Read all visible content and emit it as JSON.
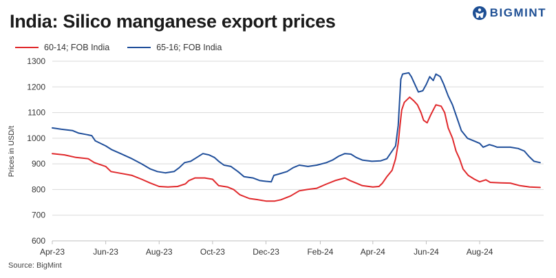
{
  "title": "India: Silico manganese export prices",
  "logo": {
    "text": "BIGMINT",
    "icon": "bigmint-logo-icon"
  },
  "source": "Source: BigMint",
  "colors": {
    "series_red": "#e0282b",
    "series_blue": "#1f4e9a",
    "grid": "#d9d9d9",
    "brand": "#1e4f94"
  },
  "chart_data": {
    "type": "line",
    "title": "India: Silico manganese export prices",
    "xlabel": "",
    "ylabel": "Prices in USD/t",
    "ylim": [
      600,
      1300
    ],
    "yticks": [
      600,
      700,
      800,
      900,
      1000,
      1100,
      1200,
      1300
    ],
    "xlim": [
      "2023-04-01",
      "2024-10-13"
    ],
    "xticks": [
      {
        "date": "2023-04-01",
        "label": "Apr-23"
      },
      {
        "date": "2023-06-01",
        "label": "Jun-23"
      },
      {
        "date": "2023-08-01",
        "label": "Aug-23"
      },
      {
        "date": "2023-10-01",
        "label": "Oct-23"
      },
      {
        "date": "2023-12-01",
        "label": "Dec-23"
      },
      {
        "date": "2024-02-01",
        "label": "Feb-24"
      },
      {
        "date": "2024-04-01",
        "label": "Apr-24"
      },
      {
        "date": "2024-06-01",
        "label": "Jun-24"
      },
      {
        "date": "2024-08-01",
        "label": "Aug-24"
      }
    ],
    "grid": "horizontal",
    "legend_position": "top-left",
    "series": [
      {
        "name": "60-14; FOB India",
        "color": "#e0282b",
        "points": [
          [
            "2023-04-01",
            940
          ],
          [
            "2023-04-15",
            935
          ],
          [
            "2023-04-28",
            925
          ],
          [
            "2023-05-12",
            920
          ],
          [
            "2023-05-19",
            905
          ],
          [
            "2023-06-01",
            890
          ],
          [
            "2023-06-07",
            870
          ],
          [
            "2023-06-20",
            862
          ],
          [
            "2023-07-01",
            855
          ],
          [
            "2023-07-12",
            840
          ],
          [
            "2023-07-22",
            825
          ],
          [
            "2023-08-01",
            812
          ],
          [
            "2023-08-11",
            810
          ],
          [
            "2023-08-22",
            812
          ],
          [
            "2023-08-31",
            822
          ],
          [
            "2023-09-04",
            835
          ],
          [
            "2023-09-11",
            845
          ],
          [
            "2023-09-22",
            845
          ],
          [
            "2023-10-01",
            840
          ],
          [
            "2023-10-08",
            815
          ],
          [
            "2023-10-18",
            810
          ],
          [
            "2023-10-25",
            800
          ],
          [
            "2023-11-01",
            780
          ],
          [
            "2023-11-12",
            765
          ],
          [
            "2023-11-22",
            760
          ],
          [
            "2023-12-01",
            755
          ],
          [
            "2023-12-11",
            755
          ],
          [
            "2023-12-18",
            760
          ],
          [
            "2023-12-29",
            775
          ],
          [
            "2024-01-08",
            795
          ],
          [
            "2024-01-17",
            800
          ],
          [
            "2024-01-28",
            805
          ],
          [
            "2024-02-07",
            820
          ],
          [
            "2024-02-18",
            835
          ],
          [
            "2024-02-29",
            845
          ],
          [
            "2024-03-06",
            835
          ],
          [
            "2024-03-13",
            825
          ],
          [
            "2024-03-20",
            815
          ],
          [
            "2024-04-01",
            810
          ],
          [
            "2024-04-08",
            812
          ],
          [
            "2024-04-12",
            825
          ],
          [
            "2024-04-17",
            850
          ],
          [
            "2024-04-23",
            875
          ],
          [
            "2024-04-27",
            920
          ],
          [
            "2024-04-30",
            980
          ],
          [
            "2024-05-02",
            1050
          ],
          [
            "2024-05-04",
            1110
          ],
          [
            "2024-05-07",
            1140
          ],
          [
            "2024-05-13",
            1160
          ],
          [
            "2024-05-18",
            1145
          ],
          [
            "2024-05-22",
            1130
          ],
          [
            "2024-05-26",
            1100
          ],
          [
            "2024-05-29",
            1070
          ],
          [
            "2024-06-02",
            1060
          ],
          [
            "2024-06-06",
            1090
          ],
          [
            "2024-06-09",
            1110
          ],
          [
            "2024-06-12",
            1130
          ],
          [
            "2024-06-18",
            1125
          ],
          [
            "2024-06-22",
            1100
          ],
          [
            "2024-06-26",
            1040
          ],
          [
            "2024-07-01",
            1000
          ],
          [
            "2024-07-05",
            950
          ],
          [
            "2024-07-09",
            920
          ],
          [
            "2024-07-13",
            880
          ],
          [
            "2024-07-19",
            855
          ],
          [
            "2024-07-26",
            840
          ],
          [
            "2024-08-01",
            830
          ],
          [
            "2024-08-08",
            838
          ],
          [
            "2024-08-13",
            828
          ],
          [
            "2024-08-25",
            826
          ],
          [
            "2024-09-05",
            825
          ],
          [
            "2024-09-16",
            815
          ],
          [
            "2024-09-27",
            810
          ],
          [
            "2024-10-09",
            808
          ]
        ]
      },
      {
        "name": "65-16; FOB India",
        "color": "#1f4e9a",
        "points": [
          [
            "2023-04-01",
            1040
          ],
          [
            "2023-04-11",
            1035
          ],
          [
            "2023-04-24",
            1030
          ],
          [
            "2023-05-01",
            1020
          ],
          [
            "2023-05-09",
            1015
          ],
          [
            "2023-05-16",
            1010
          ],
          [
            "2023-05-20",
            990
          ],
          [
            "2023-06-01",
            970
          ],
          [
            "2023-06-08",
            955
          ],
          [
            "2023-06-18",
            940
          ],
          [
            "2023-07-01",
            920
          ],
          [
            "2023-07-12",
            900
          ],
          [
            "2023-07-22",
            880
          ],
          [
            "2023-07-30",
            870
          ],
          [
            "2023-08-08",
            865
          ],
          [
            "2023-08-18",
            870
          ],
          [
            "2023-08-24",
            885
          ],
          [
            "2023-08-30",
            905
          ],
          [
            "2023-09-06",
            910
          ],
          [
            "2023-09-13",
            925
          ],
          [
            "2023-09-20",
            940
          ],
          [
            "2023-09-27",
            935
          ],
          [
            "2023-10-03",
            925
          ],
          [
            "2023-10-08",
            910
          ],
          [
            "2023-10-14",
            895
          ],
          [
            "2023-10-22",
            890
          ],
          [
            "2023-10-30",
            870
          ],
          [
            "2023-11-06",
            850
          ],
          [
            "2023-11-16",
            845
          ],
          [
            "2023-11-24",
            835
          ],
          [
            "2023-12-01",
            832
          ],
          [
            "2023-12-07",
            830
          ],
          [
            "2023-12-10",
            855
          ],
          [
            "2023-12-15",
            860
          ],
          [
            "2023-12-25",
            870
          ],
          [
            "2024-01-01",
            885
          ],
          [
            "2024-01-08",
            895
          ],
          [
            "2024-01-18",
            890
          ],
          [
            "2024-01-28",
            895
          ],
          [
            "2024-02-08",
            905
          ],
          [
            "2024-02-15",
            915
          ],
          [
            "2024-02-22",
            930
          ],
          [
            "2024-02-29",
            940
          ],
          [
            "2024-03-07",
            938
          ],
          [
            "2024-03-13",
            925
          ],
          [
            "2024-03-20",
            915
          ],
          [
            "2024-03-31",
            910
          ],
          [
            "2024-04-10",
            912
          ],
          [
            "2024-04-17",
            920
          ],
          [
            "2024-04-23",
            950
          ],
          [
            "2024-04-27",
            970
          ],
          [
            "2024-04-30",
            1050
          ],
          [
            "2024-05-03",
            1230
          ],
          [
            "2024-05-05",
            1250
          ],
          [
            "2024-05-12",
            1255
          ],
          [
            "2024-05-15",
            1240
          ],
          [
            "2024-05-19",
            1210
          ],
          [
            "2024-05-23",
            1180
          ],
          [
            "2024-05-28",
            1185
          ],
          [
            "2024-06-01",
            1210
          ],
          [
            "2024-06-05",
            1240
          ],
          [
            "2024-06-09",
            1225
          ],
          [
            "2024-06-12",
            1250
          ],
          [
            "2024-06-17",
            1240
          ],
          [
            "2024-06-21",
            1210
          ],
          [
            "2024-06-26",
            1165
          ],
          [
            "2024-07-01",
            1130
          ],
          [
            "2024-07-06",
            1080
          ],
          [
            "2024-07-11",
            1030
          ],
          [
            "2024-07-18",
            1000
          ],
          [
            "2024-07-25",
            990
          ],
          [
            "2024-08-01",
            980
          ],
          [
            "2024-08-05",
            965
          ],
          [
            "2024-08-12",
            975
          ],
          [
            "2024-08-17",
            970
          ],
          [
            "2024-08-21",
            965
          ],
          [
            "2024-09-05",
            965
          ],
          [
            "2024-09-14",
            960
          ],
          [
            "2024-09-21",
            950
          ],
          [
            "2024-09-26",
            930
          ],
          [
            "2024-10-02",
            910
          ],
          [
            "2024-10-09",
            905
          ]
        ]
      }
    ]
  }
}
